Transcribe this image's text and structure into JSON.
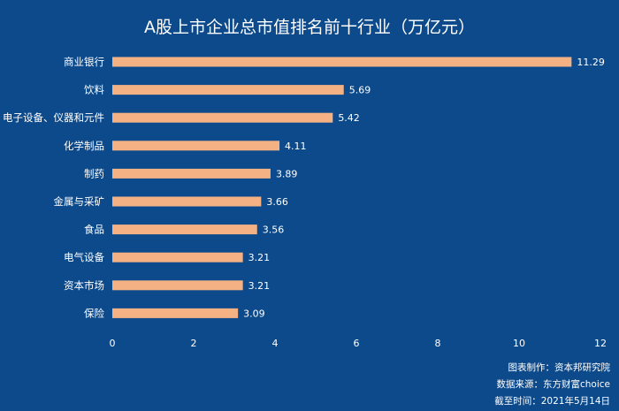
{
  "chart_data": {
    "type": "bar",
    "orientation": "horizontal",
    "title": "A股上市企业总市值排名前十行业（万亿元）",
    "categories": [
      "商业银行",
      "饮料",
      "电子设备、仪器和元件",
      "化学制品",
      "制药",
      "金属与采矿",
      "食品",
      "电气设备",
      "资本市场",
      "保险"
    ],
    "values": [
      11.29,
      5.69,
      5.42,
      4.11,
      3.89,
      3.66,
      3.56,
      3.21,
      3.21,
      3.09
    ],
    "value_labels": [
      "11.29",
      "5.69",
      "5.42",
      "4.11",
      "3.89",
      "3.66",
      "3.56",
      "3.21",
      "3.21",
      "3.09"
    ],
    "xlim": [
      0,
      12
    ],
    "xticks": [
      "0",
      "2",
      "4",
      "6",
      "8",
      "10",
      "12"
    ],
    "grid": false,
    "colors": {
      "background": "#0d4a8b",
      "bar": "#f4b183",
      "text": "#ffffff"
    }
  },
  "footer": {
    "line1": "图表制作：资本邦研究院",
    "line2": "数据来源：东方财富choice",
    "line3": "截至时间：2021年5月14日"
  }
}
